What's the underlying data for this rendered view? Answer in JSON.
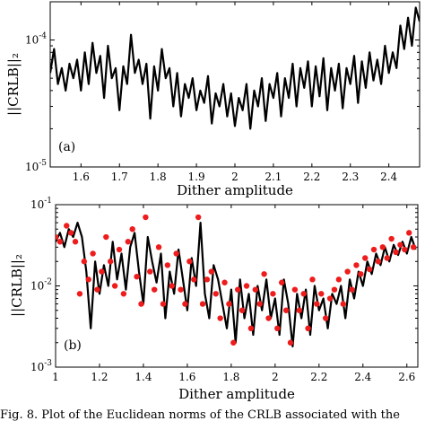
{
  "chart_data": [
    {
      "type": "line",
      "panel_label": "(a)",
      "xlabel": "Dither amplitude",
      "ylabel": "||CRLB||₂",
      "xlim": [
        1.52,
        2.48
      ],
      "ylim": [
        1e-05,
        0.0002
      ],
      "yscale": "log",
      "grid": false,
      "xticks": [
        1.6,
        1.7,
        1.8,
        1.9,
        2.0,
        2.1,
        2.2,
        2.3,
        2.4
      ],
      "xtick_labels": [
        "1.6",
        "1.7",
        "1.8",
        "1.9",
        "2",
        "2.1",
        "2.2",
        "2.3",
        "2.4"
      ],
      "ytick_labels": [
        {
          "value": 0.0001,
          "base": "10",
          "exp": "-4"
        },
        {
          "value": 1e-05,
          "base": "10",
          "exp": "-5"
        }
      ],
      "series": [
        {
          "color": "#000000",
          "x": [
            1.52,
            1.53,
            1.54,
            1.55,
            1.56,
            1.57,
            1.58,
            1.59,
            1.6,
            1.61,
            1.62,
            1.63,
            1.64,
            1.65,
            1.66,
            1.67,
            1.68,
            1.69,
            1.7,
            1.71,
            1.72,
            1.73,
            1.74,
            1.75,
            1.76,
            1.77,
            1.78,
            1.79,
            1.8,
            1.81,
            1.82,
            1.83,
            1.84,
            1.85,
            1.86,
            1.87,
            1.88,
            1.89,
            1.9,
            1.91,
            1.92,
            1.93,
            1.94,
            1.95,
            1.96,
            1.97,
            1.98,
            1.99,
            2.0,
            2.01,
            2.02,
            2.03,
            2.04,
            2.05,
            2.06,
            2.07,
            2.08,
            2.09,
            2.1,
            2.11,
            2.12,
            2.13,
            2.14,
            2.15,
            2.16,
            2.17,
            2.18,
            2.19,
            2.2,
            2.21,
            2.22,
            2.23,
            2.24,
            2.25,
            2.26,
            2.27,
            2.28,
            2.29,
            2.3,
            2.31,
            2.32,
            2.33,
            2.34,
            2.35,
            2.36,
            2.37,
            2.38,
            2.39,
            2.4,
            2.41,
            2.42,
            2.43,
            2.44,
            2.45,
            2.46,
            2.47,
            2.48
          ],
          "y": [
            5.5e-05,
            8.5e-05,
            4.5e-05,
            6e-05,
            4e-05,
            6.5e-05,
            5e-05,
            7e-05,
            4e-05,
            8e-05,
            4.5e-05,
            9.5e-05,
            5.5e-05,
            7.5e-05,
            3.5e-05,
            9e-05,
            5e-05,
            6e-05,
            2.8e-05,
            6.2e-05,
            4.5e-05,
            0.00011,
            5.5e-05,
            7e-05,
            4.5e-05,
            6.5e-05,
            2.4e-05,
            6.2e-05,
            4e-05,
            8.5e-05,
            5e-05,
            6e-05,
            3e-05,
            5.5e-05,
            2.5e-05,
            4.5e-05,
            3.5e-05,
            5e-05,
            2.8e-05,
            4e-05,
            3.2e-05,
            5.2e-05,
            2.2e-05,
            3.8e-05,
            3e-05,
            4.5e-05,
            2.5e-05,
            3.8e-05,
            2.1e-05,
            3.5e-05,
            2.8e-05,
            4.5e-05,
            2e-05,
            4e-05,
            3e-05,
            5e-05,
            2.3e-05,
            4.5e-05,
            3.5e-05,
            5.5e-05,
            2.5e-05,
            5e-05,
            3.5e-05,
            6.5e-05,
            3e-05,
            6e-05,
            4.2e-05,
            6.8e-05,
            3e-05,
            6.2e-05,
            3.6e-05,
            7.2e-05,
            2.8e-05,
            6e-05,
            4e-05,
            6.5e-05,
            2.9e-05,
            6e-05,
            4.5e-05,
            7.5e-05,
            3.2e-05,
            6.8e-05,
            4.2e-05,
            8e-05,
            4.8e-05,
            7e-05,
            4.5e-05,
            9e-05,
            5.5e-05,
            8e-05,
            6e-05,
            0.00013,
            8.5e-05,
            0.00015,
            9e-05,
            0.00018,
            0.00014
          ]
        }
      ]
    },
    {
      "type": "line+scatter",
      "panel_label": "(b)",
      "xlabel": "Dither amplitude",
      "ylabel": "||CRLB||₂",
      "xlim": [
        1.0,
        2.65
      ],
      "ylim": [
        0.001,
        0.1
      ],
      "yscale": "log",
      "grid": false,
      "xticks": [
        1.0,
        1.2,
        1.4,
        1.6,
        1.8,
        2.0,
        2.2,
        2.4,
        2.6
      ],
      "xtick_labels": [
        "1",
        "1.2",
        "1.4",
        "1.6",
        "1.8",
        "2",
        "2.2",
        "2.4",
        "2.6"
      ],
      "ytick_labels": [
        {
          "value": 0.1,
          "base": "10",
          "exp": "-1"
        },
        {
          "value": 0.01,
          "base": "10",
          "exp": "-2"
        },
        {
          "value": 0.001,
          "base": "10",
          "exp": "-3"
        }
      ],
      "series": [
        {
          "style": "line",
          "color": "#000000",
          "x": [
            1.0,
            1.02,
            1.04,
            1.06,
            1.08,
            1.1,
            1.12,
            1.14,
            1.16,
            1.18,
            1.2,
            1.22,
            1.24,
            1.26,
            1.28,
            1.3,
            1.32,
            1.34,
            1.36,
            1.38,
            1.4,
            1.42,
            1.44,
            1.46,
            1.48,
            1.5,
            1.52,
            1.54,
            1.56,
            1.58,
            1.6,
            1.62,
            1.64,
            1.66,
            1.68,
            1.7,
            1.72,
            1.74,
            1.76,
            1.78,
            1.8,
            1.82,
            1.84,
            1.86,
            1.88,
            1.9,
            1.92,
            1.94,
            1.96,
            1.98,
            2.0,
            2.02,
            2.04,
            2.06,
            2.08,
            2.1,
            2.12,
            2.14,
            2.16,
            2.18,
            2.2,
            2.22,
            2.24,
            2.26,
            2.28,
            2.3,
            2.32,
            2.34,
            2.36,
            2.38,
            2.4,
            2.42,
            2.44,
            2.46,
            2.48,
            2.5,
            2.52,
            2.54,
            2.56,
            2.58,
            2.6,
            2.62,
            2.64
          ],
          "y": [
            0.035,
            0.045,
            0.03,
            0.05,
            0.04,
            0.06,
            0.04,
            0.015,
            0.003,
            0.02,
            0.008,
            0.018,
            0.01,
            0.035,
            0.012,
            0.025,
            0.009,
            0.03,
            0.045,
            0.015,
            0.006,
            0.04,
            0.02,
            0.011,
            0.025,
            0.004,
            0.015,
            0.008,
            0.028,
            0.012,
            0.005,
            0.022,
            0.01,
            0.06,
            0.008,
            0.004,
            0.018,
            0.012,
            0.006,
            0.003,
            0.009,
            0.002,
            0.012,
            0.004,
            0.008,
            0.0025,
            0.01,
            0.005,
            0.012,
            0.004,
            0.007,
            0.0025,
            0.012,
            0.006,
            0.0018,
            0.008,
            0.004,
            0.009,
            0.0025,
            0.01,
            0.005,
            0.007,
            0.003,
            0.008,
            0.006,
            0.01,
            0.004,
            0.012,
            0.007,
            0.015,
            0.01,
            0.02,
            0.014,
            0.025,
            0.018,
            0.03,
            0.02,
            0.032,
            0.024,
            0.035,
            0.025,
            0.04,
            0.028
          ]
        },
        {
          "style": "markers",
          "color": "#ee1c1c",
          "x": [
            1.0,
            1.02,
            1.05,
            1.07,
            1.09,
            1.11,
            1.13,
            1.15,
            1.17,
            1.19,
            1.21,
            1.23,
            1.25,
            1.27,
            1.29,
            1.31,
            1.33,
            1.35,
            1.37,
            1.39,
            1.41,
            1.43,
            1.45,
            1.47,
            1.49,
            1.51,
            1.53,
            1.55,
            1.57,
            1.59,
            1.61,
            1.63,
            1.65,
            1.67,
            1.69,
            1.71,
            1.73,
            1.75,
            1.77,
            1.79,
            1.81,
            1.83,
            1.85,
            1.87,
            1.89,
            1.91,
            1.93,
            1.95,
            1.97,
            1.99,
            2.01,
            2.03,
            2.05,
            2.07,
            2.09,
            2.11,
            2.13,
            2.15,
            2.17,
            2.19,
            2.21,
            2.23,
            2.25,
            2.27,
            2.29,
            2.31,
            2.33,
            2.35,
            2.37,
            2.39,
            2.41,
            2.43,
            2.45,
            2.47,
            2.49,
            2.51,
            2.53,
            2.55,
            2.57,
            2.59,
            2.61,
            2.63
          ],
          "y": [
            0.04,
            0.035,
            0.055,
            0.045,
            0.035,
            0.008,
            0.02,
            0.012,
            0.025,
            0.009,
            0.015,
            0.04,
            0.02,
            0.01,
            0.028,
            0.008,
            0.035,
            0.05,
            0.013,
            0.006,
            0.07,
            0.015,
            0.009,
            0.03,
            0.006,
            0.018,
            0.01,
            0.025,
            0.009,
            0.006,
            0.02,
            0.012,
            0.07,
            0.006,
            0.012,
            0.015,
            0.008,
            0.004,
            0.011,
            0.006,
            0.002,
            0.009,
            0.005,
            0.01,
            0.003,
            0.009,
            0.006,
            0.014,
            0.004,
            0.008,
            0.003,
            0.011,
            0.005,
            0.002,
            0.009,
            0.005,
            0.008,
            0.003,
            0.012,
            0.006,
            0.008,
            0.004,
            0.007,
            0.009,
            0.012,
            0.006,
            0.015,
            0.009,
            0.018,
            0.014,
            0.022,
            0.016,
            0.028,
            0.02,
            0.03,
            0.022,
            0.038,
            0.026,
            0.032,
            0.028,
            0.045,
            0.03
          ]
        }
      ]
    }
  ],
  "caption": {
    "text": "Fig. 8.   Plot of the Euclidean norms of the CRLB associated with the"
  }
}
